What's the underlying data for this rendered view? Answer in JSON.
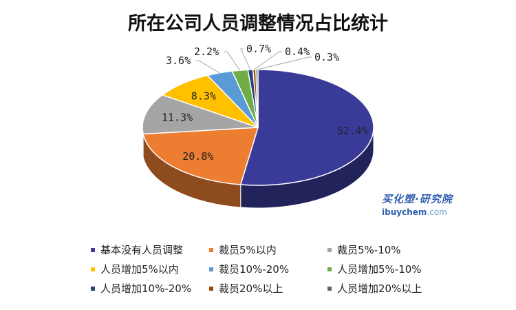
{
  "chart_data": {
    "type": "pie",
    "title": "所在公司人员调整情况占比统计",
    "categories": [
      "基本没有人员调整",
      "裁员5%以内",
      "裁员5%-10%",
      "人员增加5%以内",
      "裁员10%-20%",
      "人员增加5%-10%",
      "人员增加10%-20%",
      "裁员20%以上",
      "人员增加20%以上"
    ],
    "values": [
      52.4,
      20.8,
      11.3,
      8.3,
      3.6,
      2.2,
      0.7,
      0.4,
      0.3
    ],
    "labels": [
      "52.4%",
      "20.8%",
      "11.3%",
      "8.3%",
      "3.6%",
      "2.2%",
      "0.7%",
      "0.4%",
      "0.3%"
    ],
    "colors": [
      "#3a3a98",
      "#ed7d31",
      "#a5a5a5",
      "#ffc000",
      "#5b9bd5",
      "#70ad47",
      "#264478",
      "#9e480e",
      "#636363"
    ],
    "legend_position": "bottom",
    "style": "3d-pie"
  },
  "watermark": {
    "text_cn": "买化塑·研究院",
    "text_en_main": "ibuychem",
    "text_en_suffix": ".com",
    "color": "#2f5fae"
  }
}
